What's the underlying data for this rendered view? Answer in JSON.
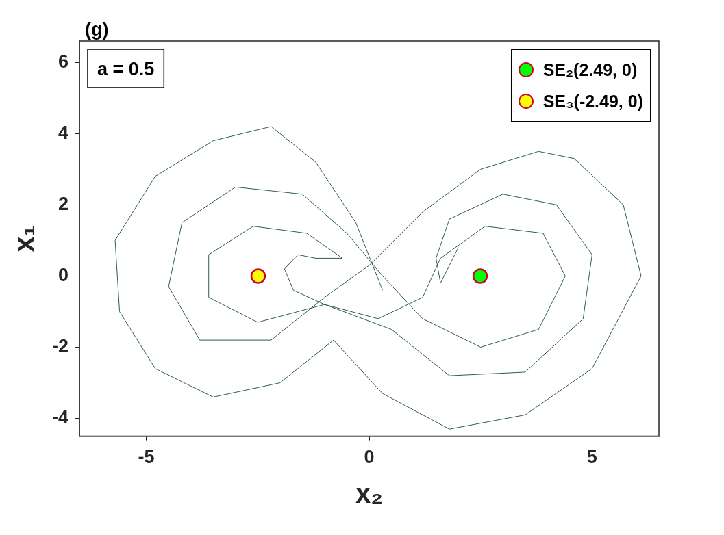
{
  "chart_data": {
    "type": "line",
    "xlabel": "x₂",
    "ylabel": "x₁",
    "xlim": [
      -6.5,
      6.5
    ],
    "ylim": [
      -4.5,
      6.6
    ],
    "xticks": [
      -5,
      0,
      5
    ],
    "yticks": [
      -4,
      -2,
      0,
      2,
      4,
      6
    ],
    "grid": false,
    "legend": "top right",
    "line_style": "solid",
    "annotations": [
      "(g)",
      "a = 0.5"
    ],
    "series": [
      {
        "color": "#2d5e4b",
        "marker": "none",
        "x": [
          0.3,
          -0.3,
          -1.2,
          -2.2,
          -3.5,
          -4.8,
          -5.7,
          -5.6,
          -4.8,
          -3.5,
          -2.0,
          -0.8,
          0.3,
          1.8,
          3.5,
          5.0,
          6.1,
          5.7,
          4.6,
          3.8,
          2.5,
          1.2,
          0.0,
          -1.0,
          -2.2,
          -3.8,
          -4.5,
          -4.2,
          -3.0,
          -1.5,
          -0.5,
          0.3,
          1.2,
          2.5,
          3.8,
          4.4,
          3.9,
          2.6,
          1.6,
          1.2,
          0.2,
          -1.0,
          -2.5,
          -3.6,
          -3.6,
          -2.6,
          -1.4,
          -0.6,
          -1.2,
          -1.6,
          -1.9,
          -1.7,
          -1.0,
          0.5,
          1.8,
          3.5,
          4.8,
          5.0,
          4.2,
          3.0,
          1.8,
          1.5,
          1.6,
          2.0
        ],
        "values": [
          -0.4,
          1.5,
          3.2,
          4.2,
          3.8,
          2.8,
          1.0,
          -1.0,
          -2.6,
          -3.4,
          -3.0,
          -1.8,
          -3.3,
          -4.3,
          -3.9,
          -2.6,
          0.0,
          2.0,
          3.3,
          3.5,
          3.0,
          1.8,
          0.3,
          -0.6,
          -1.8,
          -1.8,
          -0.3,
          1.5,
          2.5,
          2.3,
          1.2,
          0.0,
          -1.2,
          -2.0,
          -1.5,
          0.0,
          1.2,
          1.4,
          0.5,
          -0.6,
          -1.2,
          -0.8,
          -1.3,
          -0.6,
          0.6,
          1.4,
          1.2,
          0.5,
          0.5,
          0.6,
          0.2,
          -0.4,
          -0.8,
          -1.5,
          -2.8,
          -2.7,
          -1.2,
          0.6,
          2.0,
          2.3,
          1.6,
          0.5,
          -0.2,
          0.8
        ]
      },
      {
        "type": "scatter",
        "name": "SE₂(2.49, 0)",
        "color": "#00ff00",
        "marker": "circle",
        "x": [
          2.49
        ],
        "values": [
          0
        ]
      },
      {
        "type": "scatter",
        "name": "SE₃(-2.49, 0)",
        "color": "#ffff00",
        "marker": "circle",
        "x": [
          -2.49
        ],
        "values": [
          0
        ]
      }
    ]
  }
}
